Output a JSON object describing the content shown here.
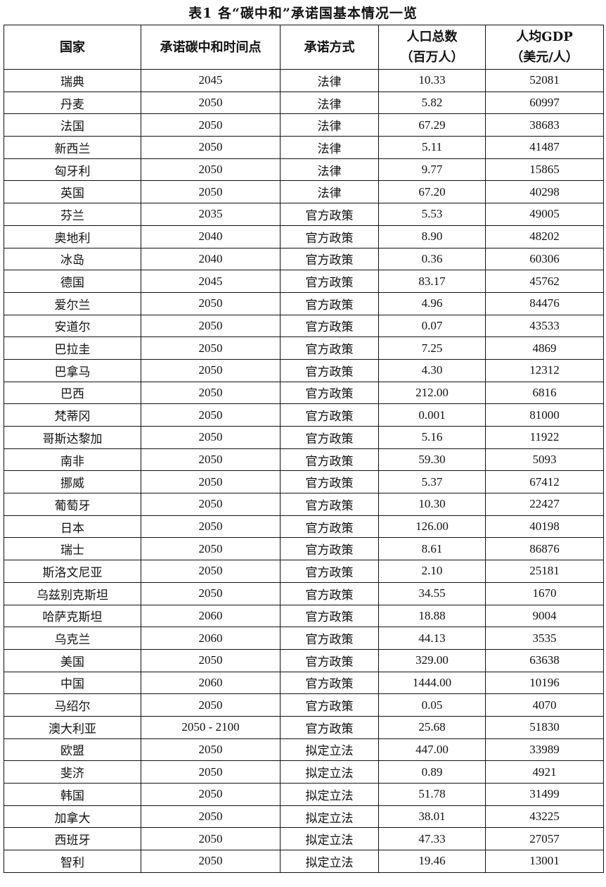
{
  "title": "表1 各“碳中和”承诺国基本情况一览",
  "headers": [
    "国家",
    "承诺碳中和时间点",
    "承诺方式",
    "人口总数\n（百万人）",
    "人均GDP\n（美元/人）"
  ],
  "rows": [
    [
      "瑞典",
      "2045",
      "法律",
      "10.33",
      "52081"
    ],
    [
      "丹麦",
      "2050",
      "法律",
      "5.82",
      "60997"
    ],
    [
      "法国",
      "2050",
      "法律",
      "67.29",
      "38683"
    ],
    [
      "新西兰",
      "2050",
      "法律",
      "5.11",
      "41487"
    ],
    [
      "匈牙利",
      "2050",
      "法律",
      "9.77",
      "15865"
    ],
    [
      "英国",
      "2050",
      "法律",
      "67.20",
      "40298"
    ],
    [
      "芬兰",
      "2035",
      "官方政策",
      "5.53",
      "49005"
    ],
    [
      "奥地利",
      "2040",
      "官方政策",
      "8.90",
      "48202"
    ],
    [
      "冰岛",
      "2040",
      "官方政策",
      "0.36",
      "60306"
    ],
    [
      "德国",
      "2045",
      "官方政策",
      "83.17",
      "45762"
    ],
    [
      "爱尔兰",
      "2050",
      "官方政策",
      "4.96",
      "84476"
    ],
    [
      "安道尔",
      "2050",
      "官方政策",
      "0.07",
      "43533"
    ],
    [
      "巴拉圭",
      "2050",
      "官方政策",
      "7.25",
      "4869"
    ],
    [
      "巴拿马",
      "2050",
      "官方政策",
      "4.30",
      "12312"
    ],
    [
      "巴西",
      "2050",
      "官方政策",
      "212.00",
      "6816"
    ],
    [
      "梵蒂冈",
      "2050",
      "官方政策",
      "0.001",
      "81000"
    ],
    [
      "哥斯达黎加",
      "2050",
      "官方政策",
      "5.16",
      "11922"
    ],
    [
      "南非",
      "2050",
      "官方政策",
      "59.30",
      "5093"
    ],
    [
      "挪威",
      "2050",
      "官方政策",
      "5.37",
      "67412"
    ],
    [
      "葡萄牙",
      "2050",
      "官方政策",
      "10.30",
      "22427"
    ],
    [
      "日本",
      "2050",
      "官方政策",
      "126.00",
      "40198"
    ],
    [
      "瑞士",
      "2050",
      "官方政策",
      "8.61",
      "86876"
    ],
    [
      "斯洛文尼亚",
      "2050",
      "官方政策",
      "2.10",
      "25181"
    ],
    [
      "乌兹别克斯坦",
      "2050",
      "官方政策",
      "34.55",
      "1670"
    ],
    [
      "哈萨克斯坦",
      "2060",
      "官方政策",
      "18.88",
      "9004"
    ],
    [
      "乌克兰",
      "2060",
      "官方政策",
      "44.13",
      "3535"
    ],
    [
      "美国",
      "2050",
      "官方政策",
      "329.00",
      "63638"
    ],
    [
      "中国",
      "2060",
      "官方政策",
      "1444.00",
      "10196"
    ],
    [
      "马绍尔",
      "2050",
      "官方政策",
      "0.05",
      "4070"
    ],
    [
      "澳大利亚",
      "2050 - 2100",
      "官方政策",
      "25.68",
      "51830"
    ],
    [
      "欧盟",
      "2050",
      "拟定立法",
      "447.00",
      "33989"
    ],
    [
      "斐济",
      "2050",
      "拟定立法",
      "0.89",
      "4921"
    ],
    [
      "韩国",
      "2050",
      "拟定立法",
      "51.78",
      "31499"
    ],
    [
      "加拿大",
      "2050",
      "拟定立法",
      "38.01",
      "43225"
    ],
    [
      "西班牙",
      "2050",
      "拟定立法",
      "47.33",
      "27057"
    ],
    [
      "智利",
      "2050",
      "拟定立法",
      "19.46",
      "13001"
    ]
  ]
}
